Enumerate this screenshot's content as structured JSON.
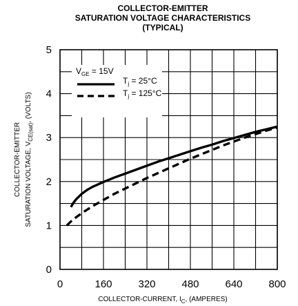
{
  "chart_data": {
    "type": "line",
    "title_lines": [
      "COLLECTOR-EMITTER",
      "SATURATION VOLTAGE CHARACTERISTICS",
      "(TYPICAL)"
    ],
    "xlabel": {
      "main": "COLLECTOR-CURRENT, I",
      "sub": "C",
      "suffix": ", (AMPERES)"
    },
    "ylabel": {
      "line1": "COLLECTOR-EMITTER",
      "line2_main": "SATURATION VOLTAGE, V",
      "line2_sub": "CE(sat)",
      "line2_suffix": ", (VOLTS)"
    },
    "xlim": [
      0,
      800
    ],
    "ylim": [
      0,
      5
    ],
    "x_ticks": [
      "0",
      "160",
      "320",
      "480",
      "640",
      "800"
    ],
    "y_ticks": [
      "0",
      "1",
      "2",
      "3",
      "4",
      "5"
    ],
    "x_tick_values": [
      0,
      160,
      320,
      480,
      640,
      800
    ],
    "y_tick_values": [
      0,
      1,
      2,
      3,
      4,
      5
    ],
    "x_grid": [
      0,
      80,
      160,
      240,
      320,
      400,
      480,
      560,
      640,
      720,
      800
    ],
    "y_grid": [
      0,
      0.5,
      1,
      1.5,
      2,
      2.5,
      3,
      3.5,
      4,
      4.5,
      5
    ],
    "grid": true,
    "legend_title": {
      "main": "V",
      "sub": "GE",
      "suffix": " = 15V"
    },
    "series": [
      {
        "name_main": "T",
        "name_sub": "j",
        "name_suffix": " = 25°C",
        "style": "solid",
        "x": [
          40,
          50,
          60,
          80,
          100,
          120,
          160,
          200,
          240,
          280,
          320,
          360,
          400,
          440,
          480,
          520,
          560,
          600,
          640,
          680,
          720,
          760,
          800
        ],
        "y": [
          1.42,
          1.52,
          1.6,
          1.72,
          1.81,
          1.88,
          1.99,
          2.09,
          2.18,
          2.27,
          2.36,
          2.45,
          2.53,
          2.61,
          2.69,
          2.77,
          2.84,
          2.92,
          2.99,
          3.06,
          3.13,
          3.19,
          3.25
        ]
      },
      {
        "name_main": "T",
        "name_sub": "j",
        "name_suffix": " = 125°C",
        "style": "dashed",
        "x": [
          25,
          40,
          60,
          80,
          100,
          120,
          160,
          200,
          240,
          280,
          320,
          360,
          400,
          440,
          480,
          520,
          560,
          600,
          640,
          680,
          720,
          760,
          800
        ],
        "y": [
          1.0,
          1.09,
          1.19,
          1.28,
          1.36,
          1.44,
          1.58,
          1.72,
          1.84,
          1.96,
          2.08,
          2.19,
          2.3,
          2.41,
          2.52,
          2.62,
          2.72,
          2.82,
          2.91,
          3.0,
          3.08,
          3.16,
          3.23
        ]
      }
    ],
    "line_color": "#000000",
    "grid_color": "#000000"
  }
}
